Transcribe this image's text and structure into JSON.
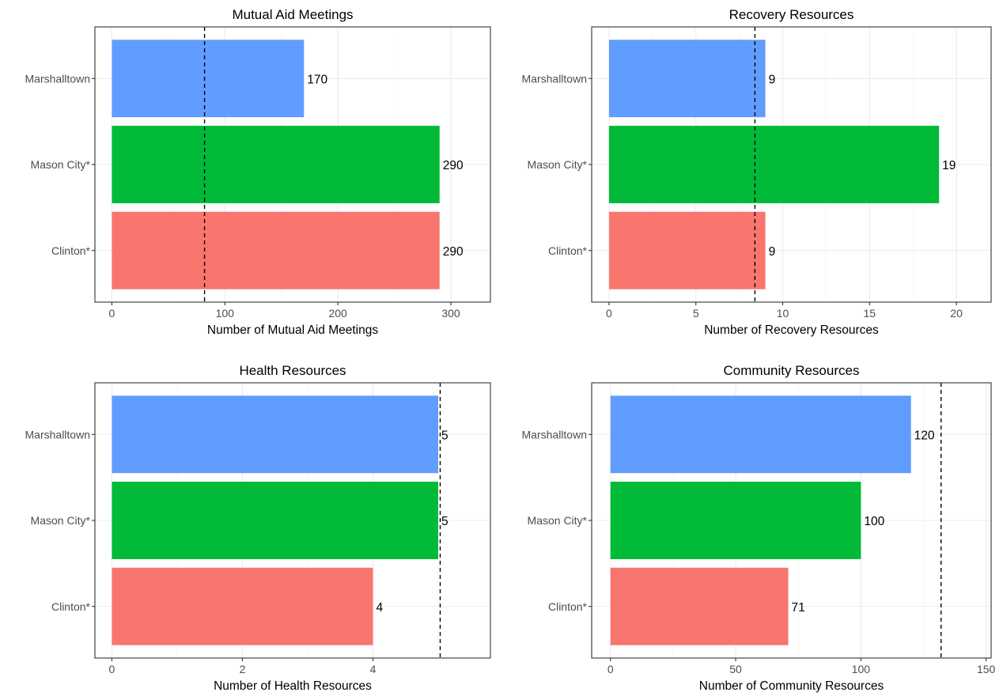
{
  "chart_data": [
    {
      "type": "bar",
      "orientation": "horizontal",
      "title": "Mutual Aid Meetings",
      "xlabel": "Number of Mutual Aid Meetings",
      "ylabel": "",
      "categories": [
        "Marshalltown",
        "Mason City*",
        "Clinton*"
      ],
      "values": [
        170,
        290,
        290
      ],
      "value_labels": [
        "170",
        "290",
        "290"
      ],
      "colors": [
        "#619CFF",
        "#00BA38",
        "#F8766D"
      ],
      "xlim": [
        -15,
        335
      ],
      "xticks": [
        0,
        100,
        200,
        300
      ],
      "reference_line": 82,
      "grid": true
    },
    {
      "type": "bar",
      "orientation": "horizontal",
      "title": "Recovery Resources",
      "xlabel": "Number of Recovery Resources",
      "ylabel": "",
      "categories": [
        "Marshalltown",
        "Mason City*",
        "Clinton*"
      ],
      "values": [
        9,
        19,
        9
      ],
      "value_labels": [
        "9",
        "19",
        "9"
      ],
      "colors": [
        "#619CFF",
        "#00BA38",
        "#F8766D"
      ],
      "xlim": [
        -1,
        22
      ],
      "xticks": [
        0,
        5,
        10,
        15,
        20
      ],
      "reference_line": 8.4,
      "grid": true
    },
    {
      "type": "bar",
      "orientation": "horizontal",
      "title": "Health Resources",
      "xlabel": "Number of Health Resources",
      "ylabel": "",
      "categories": [
        "Marshalltown",
        "Mason City*",
        "Clinton*"
      ],
      "values": [
        5,
        5,
        4
      ],
      "value_labels": [
        "5",
        "5",
        "4"
      ],
      "colors": [
        "#619CFF",
        "#00BA38",
        "#F8766D"
      ],
      "xlim": [
        -0.26,
        5.8
      ],
      "xticks": [
        0,
        2,
        4
      ],
      "reference_line": 5.03,
      "grid": true
    },
    {
      "type": "bar",
      "orientation": "horizontal",
      "title": "Community Resources",
      "xlabel": "Number of Community Resources",
      "ylabel": "",
      "categories": [
        "Marshalltown",
        "Mason City*",
        "Clinton*"
      ],
      "values": [
        120,
        100,
        71
      ],
      "value_labels": [
        "120",
        "100",
        "71"
      ],
      "colors": [
        "#619CFF",
        "#00BA38",
        "#F8766D"
      ],
      "xlim": [
        -7.5,
        152
      ],
      "xticks": [
        0,
        50,
        100,
        150
      ],
      "reference_line": 132,
      "grid": true
    }
  ]
}
